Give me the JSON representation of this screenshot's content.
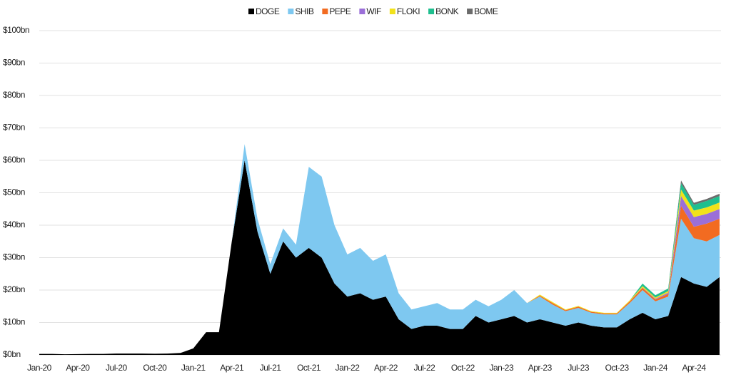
{
  "chart_data": {
    "type": "stacked_area",
    "categories": [
      "Jan-20",
      null,
      null,
      "Apr-20",
      null,
      null,
      "Jul-20",
      null,
      null,
      "Oct-20",
      null,
      null,
      "Jan-21",
      null,
      null,
      "Apr-21",
      null,
      null,
      "Jul-21",
      null,
      null,
      "Oct-21",
      null,
      null,
      "Jan-22",
      null,
      null,
      "Apr-22",
      null,
      null,
      "Jul-22",
      null,
      null,
      "Oct-22",
      null,
      null,
      "Jan-23",
      null,
      null,
      "Apr-23",
      null,
      null,
      "Jul-23",
      null,
      null,
      "Oct-23",
      null,
      null,
      "Jan-24",
      null,
      null,
      "Apr-24",
      null,
      null
    ],
    "series": [
      {
        "name": "DOGE",
        "color": "#000000",
        "values": [
          0.3,
          0.3,
          0.2,
          0.25,
          0.3,
          0.3,
          0.4,
          0.4,
          0.4,
          0.35,
          0.4,
          0.6,
          2,
          7,
          7,
          35,
          60,
          38,
          25,
          35,
          30,
          33,
          30,
          22,
          18,
          19,
          17,
          18,
          11,
          8,
          9,
          9,
          8,
          8,
          12,
          10,
          11,
          12,
          10,
          11,
          10,
          9,
          10,
          9,
          8.5,
          8.5,
          11,
          13,
          11,
          12,
          24,
          22,
          21,
          24
        ]
      },
      {
        "name": "SHIB",
        "color": "#7ec8f0",
        "values": [
          0,
          0,
          0,
          0,
          0,
          0,
          0,
          0,
          0,
          0,
          0,
          0,
          0,
          0,
          0,
          0,
          5,
          4,
          3,
          4,
          4,
          25,
          25,
          18,
          13,
          14,
          12,
          13,
          8,
          6,
          6,
          7,
          6,
          6,
          5,
          5,
          6,
          8,
          6,
          7,
          5.5,
          4.5,
          4.5,
          4,
          4,
          4,
          5,
          7,
          5.5,
          6,
          18,
          14,
          14,
          13
        ]
      },
      {
        "name": "PEPE",
        "color": "#f26b21",
        "values": [
          0,
          0,
          0,
          0,
          0,
          0,
          0,
          0,
          0,
          0,
          0,
          0,
          0,
          0,
          0,
          0,
          0,
          0,
          0,
          0,
          0,
          0,
          0,
          0,
          0,
          0,
          0,
          0,
          0,
          0,
          0,
          0,
          0,
          0,
          0,
          0,
          0,
          0,
          0,
          0.3,
          0.5,
          0.3,
          0.4,
          0.3,
          0.3,
          0.3,
          0.5,
          0.7,
          0.6,
          0.8,
          4,
          3.5,
          5.5,
          5
        ]
      },
      {
        "name": "WIF",
        "color": "#9b6fd8",
        "values": [
          0,
          0,
          0,
          0,
          0,
          0,
          0,
          0,
          0,
          0,
          0,
          0,
          0,
          0,
          0,
          0,
          0,
          0,
          0,
          0,
          0,
          0,
          0,
          0,
          0,
          0,
          0,
          0,
          0,
          0,
          0,
          0,
          0,
          0,
          0,
          0,
          0,
          0,
          0,
          0,
          0,
          0,
          0,
          0,
          0,
          0,
          0,
          0.1,
          0.2,
          0.4,
          3,
          3,
          3,
          3
        ]
      },
      {
        "name": "FLOKI",
        "color": "#f2e21b",
        "values": [
          0,
          0,
          0,
          0,
          0,
          0,
          0,
          0,
          0,
          0,
          0,
          0,
          0,
          0,
          0,
          0,
          0,
          0,
          0,
          0,
          0,
          0,
          0,
          0,
          0,
          0,
          0,
          0,
          0,
          0,
          0,
          0,
          0,
          0,
          0,
          0,
          0,
          0,
          0,
          0.3,
          0.3,
          0.2,
          0.2,
          0.2,
          0.2,
          0.2,
          0.3,
          0.4,
          0.4,
          0.5,
          2,
          2,
          2,
          2
        ]
      },
      {
        "name": "BONK",
        "color": "#1fbf8f",
        "values": [
          0,
          0,
          0,
          0,
          0,
          0,
          0,
          0,
          0,
          0,
          0,
          0,
          0,
          0,
          0,
          0,
          0,
          0,
          0,
          0,
          0,
          0,
          0,
          0,
          0,
          0,
          0,
          0,
          0,
          0,
          0,
          0,
          0,
          0,
          0,
          0,
          0,
          0,
          0,
          0,
          0,
          0,
          0,
          0,
          0,
          0,
          0,
          0.8,
          0.7,
          0.8,
          2,
          1.8,
          2,
          2
        ]
      },
      {
        "name": "BOME",
        "color": "#6b6b6b",
        "values": [
          0,
          0,
          0,
          0,
          0,
          0,
          0,
          0,
          0,
          0,
          0,
          0,
          0,
          0,
          0,
          0,
          0,
          0,
          0,
          0,
          0,
          0,
          0,
          0,
          0,
          0,
          0,
          0,
          0,
          0,
          0,
          0,
          0,
          0,
          0,
          0,
          0,
          0,
          0,
          0,
          0,
          0,
          0,
          0,
          0,
          0,
          0,
          0,
          0,
          0,
          0.8,
          0.6,
          0.6,
          0.7
        ]
      }
    ],
    "ylim": [
      0,
      100
    ],
    "yticks": [
      {
        "value": 0,
        "label": "$0bn"
      },
      {
        "value": 10,
        "label": "$10bn"
      },
      {
        "value": 20,
        "label": "$20bn"
      },
      {
        "value": 30,
        "label": "$30bn"
      },
      {
        "value": 40,
        "label": "$40bn"
      },
      {
        "value": 50,
        "label": "$50bn"
      },
      {
        "value": 60,
        "label": "$60bn"
      },
      {
        "value": 70,
        "label": "$70bn"
      },
      {
        "value": 80,
        "label": "$80bn"
      },
      {
        "value": 90,
        "label": "$90bn"
      },
      {
        "value": 100,
        "label": "$100bn"
      }
    ],
    "grid": true,
    "legend": "top"
  }
}
